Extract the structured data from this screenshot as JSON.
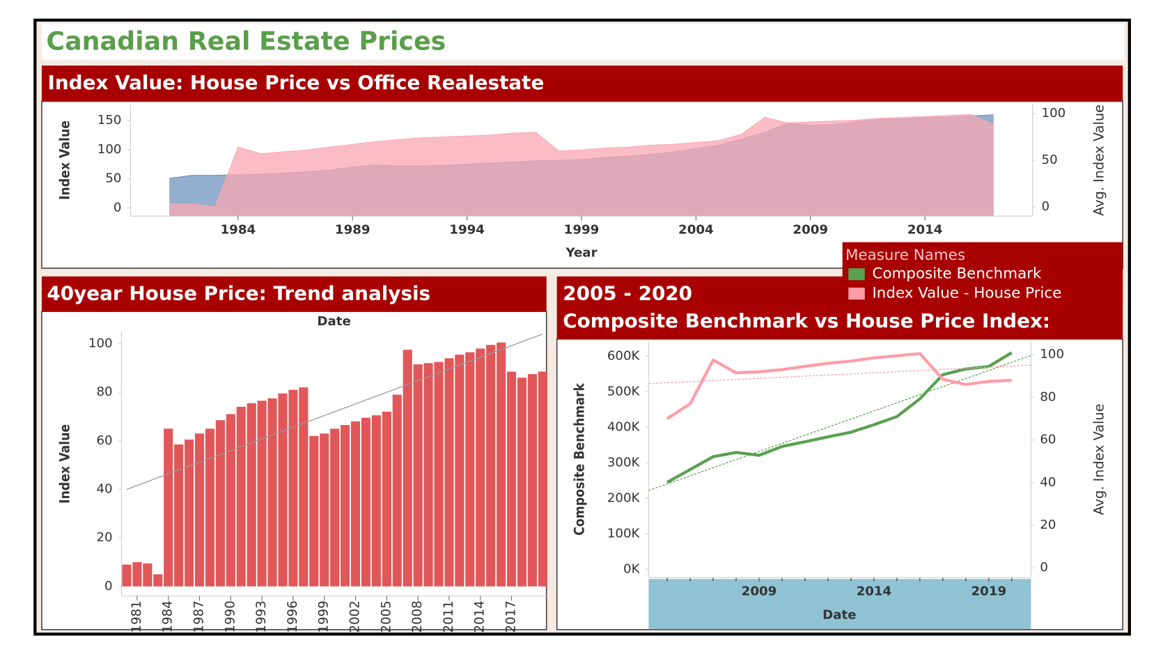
{
  "title": "Canadian Real Estate Prices",
  "chart_data": [
    {
      "type": "area",
      "title": "Index Value: House Price vs Office Realestate",
      "xlabel": "Year",
      "ylabel": "Index Value",
      "y2label": "Avg. Index Value",
      "x": [
        1981,
        1982,
        1983,
        1984,
        1985,
        1986,
        1987,
        1988,
        1989,
        1990,
        1991,
        1992,
        1993,
        1994,
        1995,
        1996,
        1997,
        1998,
        1999,
        2000,
        2001,
        2002,
        2003,
        2004,
        2005,
        2006,
        2007,
        2008,
        2009,
        2010,
        2011,
        2012,
        2013,
        2014,
        2015,
        2016,
        2017
      ],
      "xlim": [
        1979.3,
        2018.7
      ],
      "xticks": [
        1984,
        1989,
        1994,
        1999,
        2004,
        2009,
        2014
      ],
      "ylim": [
        -14,
        178
      ],
      "yticks": [
        0,
        50,
        100,
        150
      ],
      "y2lim": [
        -10,
        110
      ],
      "y2ticks": [
        0,
        50,
        100
      ],
      "series": [
        {
          "color": "#6f93bd",
          "values": [
            51,
            56,
            56,
            57,
            58,
            60,
            62,
            65,
            70,
            74,
            72,
            72,
            73,
            75,
            77,
            79,
            81,
            82,
            83,
            87,
            89,
            92,
            96,
            102,
            108,
            118,
            130,
            145,
            142,
            143,
            148,
            152,
            153,
            155,
            156,
            158,
            160
          ]
        },
        {
          "color": "#f9a7b2",
          "axis": "y2",
          "values": [
            3,
            3,
            0,
            64,
            57,
            59,
            61,
            64,
            67,
            70,
            72,
            74,
            75,
            76,
            77,
            79,
            80,
            60,
            61,
            63,
            64,
            66,
            67,
            69,
            71,
            78,
            96,
            90,
            91,
            92,
            93,
            95,
            96,
            97,
            98,
            99,
            88
          ]
        }
      ]
    },
    {
      "type": "bar",
      "title": "40year House Price: Trend analysis",
      "xlabel": "Date",
      "ylabel": "Index Value",
      "color": "#e15759",
      "x": [
        1980,
        1981,
        1982,
        1983,
        1984,
        1985,
        1986,
        1987,
        1988,
        1989,
        1990,
        1991,
        1992,
        1993,
        1994,
        1995,
        1996,
        1997,
        1998,
        1999,
        2000,
        2001,
        2002,
        2003,
        2004,
        2005,
        2006,
        2007,
        2008,
        2009,
        2010,
        2011,
        2012,
        2013,
        2014,
        2015,
        2016,
        2017,
        2018,
        2019,
        2020
      ],
      "values": [
        9,
        10,
        9.5,
        5,
        65,
        58.5,
        60.5,
        63,
        65,
        68.5,
        71,
        74,
        75.5,
        76.5,
        77.5,
        79.5,
        81,
        82,
        62,
        63,
        65,
        66.5,
        68,
        69.5,
        70.5,
        72,
        79,
        97.5,
        91.5,
        92,
        92.5,
        94,
        95.5,
        96.5,
        98,
        99.5,
        100.5,
        88.5,
        86,
        87.5,
        88.5
      ],
      "xlim": [
        1979.5,
        2020.5
      ],
      "xticks": [
        1981,
        1984,
        1987,
        1990,
        1993,
        1996,
        1999,
        2002,
        2005,
        2008,
        2011,
        2014,
        2017
      ],
      "ylim": [
        -4,
        105
      ],
      "yticks": [
        0,
        20,
        40,
        60,
        80,
        100
      ],
      "trendline": {
        "x": [
          1980,
          2020
        ],
        "values": [
          40,
          104
        ]
      }
    },
    {
      "type": "line",
      "title": "2005 - 2020",
      "subtitle": "Composite Benchmark vs House Price Index:",
      "xlabel": "Date",
      "ylabel": "Composite Benchmark",
      "y2label": "Avg. Index Value",
      "legend_title": "Measure Names",
      "x": [
        2005,
        2006,
        2007,
        2008,
        2009,
        2010,
        2011,
        2012,
        2013,
        2014,
        2015,
        2016,
        2017,
        2018,
        2019,
        2020
      ],
      "xlim": [
        2004.19,
        2020.84
      ],
      "xticks": [
        2009,
        2014,
        2019
      ],
      "ylim": [
        -23000,
        642000
      ],
      "yticks": [
        {
          "value": 0,
          "label": "0K"
        },
        {
          "value": 100000,
          "label": "100K"
        },
        {
          "value": 200000,
          "label": "200K"
        },
        {
          "value": 300000,
          "label": "300K"
        },
        {
          "value": 400000,
          "label": "400K"
        },
        {
          "value": 500000,
          "label": "500K"
        },
        {
          "value": 600000,
          "label": "600K"
        }
      ],
      "y2lim": [
        -4.5,
        106.3
      ],
      "y2ticks": [
        0,
        20,
        40,
        60,
        80,
        100
      ],
      "series": [
        {
          "name": "Composite Benchmark",
          "color": "#59a14f",
          "values": [
            245000,
            281000,
            317000,
            329000,
            321000,
            346000,
            359000,
            373000,
            386000,
            407000,
            430000,
            480000,
            548000,
            564000,
            571000,
            610000
          ],
          "trendline": {
            "x": [
              2004.19,
              2020.84
            ],
            "values": [
              222000,
              602000
            ]
          }
        },
        {
          "name": "Index Value - House Price",
          "color": "#ff9da7",
          "axis": "y2",
          "values": [
            70,
            77,
            97.5,
            91.5,
            92,
            93,
            94.5,
            96,
            97,
            98.5,
            99.5,
            100.5,
            88.5,
            86,
            87.5,
            88
          ],
          "trendline": {
            "x": [
              2004.19,
              2020.84
            ],
            "values": [
              86.4,
              95.1
            ]
          }
        }
      ]
    }
  ]
}
